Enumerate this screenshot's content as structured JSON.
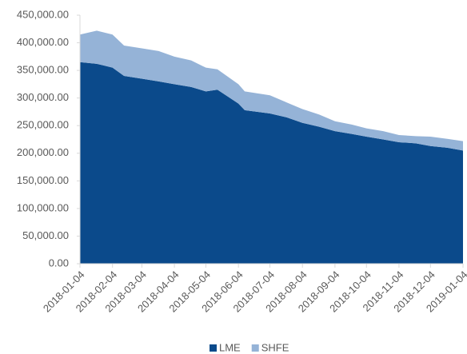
{
  "chart_data": {
    "type": "stacked_area",
    "x": [
      "2018-01-04",
      "2018-01-20",
      "2018-02-04",
      "2018-02-15",
      "2018-03-04",
      "2018-03-20",
      "2018-04-04",
      "2018-04-20",
      "2018-05-04",
      "2018-05-15",
      "2018-06-04",
      "2018-06-10",
      "2018-07-04",
      "2018-07-20",
      "2018-08-04",
      "2018-08-20",
      "2018-09-04",
      "2018-09-20",
      "2018-10-04",
      "2018-10-20",
      "2018-11-04",
      "2018-11-20",
      "2018-12-04",
      "2018-12-20",
      "2019-01-04"
    ],
    "series": [
      {
        "name": "LME",
        "color": "#0b4a8b",
        "values": [
          365000,
          362000,
          355000,
          340000,
          335000,
          330000,
          325000,
          320000,
          312000,
          315000,
          290000,
          278000,
          272000,
          265000,
          255000,
          248000,
          240000,
          235000,
          230000,
          225000,
          220000,
          218000,
          213000,
          210000,
          205000
        ]
      },
      {
        "name": "SHFE",
        "color": "#95b3d7",
        "values": [
          50000,
          60000,
          60000,
          55000,
          55000,
          55000,
          50000,
          48000,
          43000,
          37000,
          35000,
          34000,
          33000,
          27000,
          25000,
          22000,
          18000,
          17000,
          15000,
          15000,
          13000,
          13000,
          17000,
          16000,
          17000
        ]
      }
    ],
    "xlim": [
      "2018-01-04",
      "2019-01-04"
    ],
    "xticks": [
      "2018-01-04",
      "2018-02-04",
      "2018-03-04",
      "2018-04-04",
      "2018-05-04",
      "2018-06-04",
      "2018-07-04",
      "2018-08-04",
      "2018-09-04",
      "2018-10-04",
      "2018-11-04",
      "2018-12-04",
      "2019-01-04"
    ],
    "ylim": [
      0,
      450000
    ],
    "yticks": [
      {
        "value": 0,
        "label": "0.00"
      },
      {
        "value": 50000,
        "label": "50,000.00"
      },
      {
        "value": 100000,
        "label": "100,000.00"
      },
      {
        "value": 150000,
        "label": "150,000.00"
      },
      {
        "value": 200000,
        "label": "200,000.00"
      },
      {
        "value": 250000,
        "label": "250,000.00"
      },
      {
        "value": 300000,
        "label": "300,000.00"
      },
      {
        "value": 350000,
        "label": "350,000.00"
      },
      {
        "value": 400000,
        "label": "400,000.00"
      },
      {
        "value": 450000,
        "label": "450,000.00"
      }
    ],
    "grid": false,
    "legend": "bottom"
  }
}
